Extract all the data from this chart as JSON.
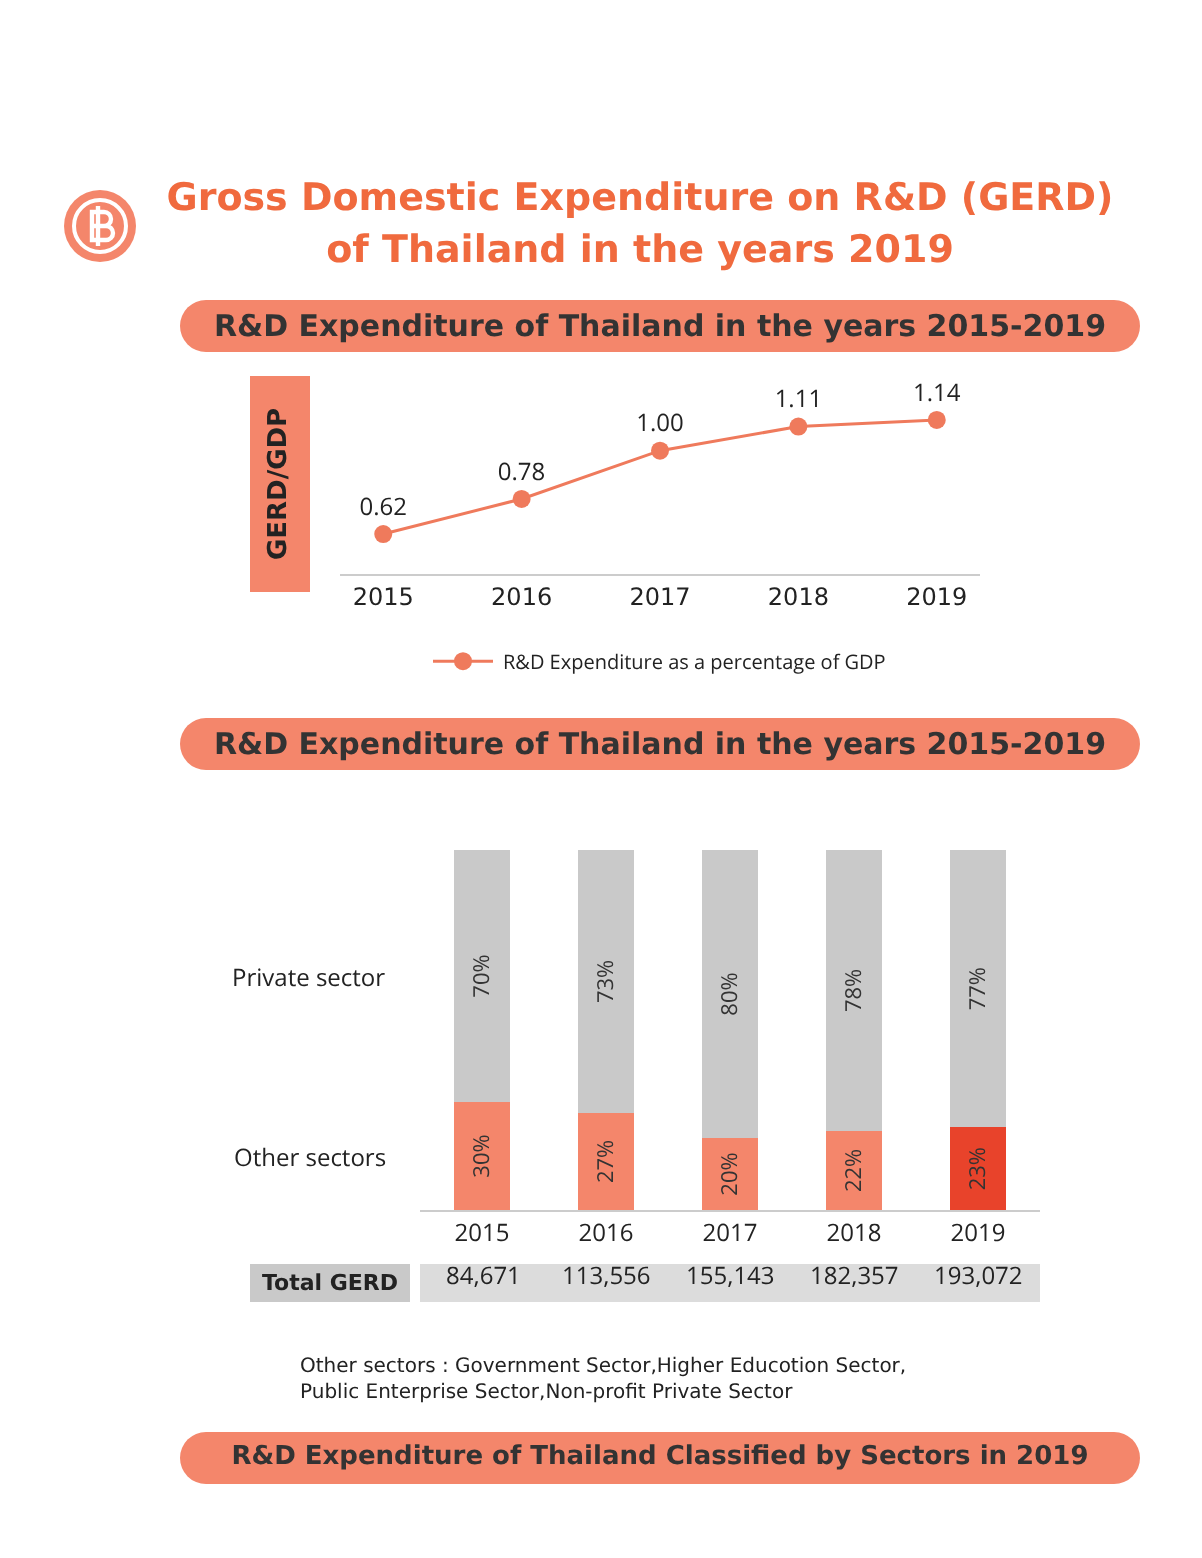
{
  "chart_data": [
    {
      "type": "line",
      "title": "Gross Domestic Expenditure on R&D (GERD) of Thailand in the years 2019",
      "subtitle": "R&D Expenditure of Thailand in the years 2015-2019",
      "ylabel": "GERD/GDP",
      "categories": [
        "2015",
        "2016",
        "2017",
        "2018",
        "2019"
      ],
      "series": [
        {
          "name": "R&D Expenditure as a percentage of GDP",
          "color": "#ef7a5c",
          "values": [
            0.62,
            0.78,
            1.0,
            1.11,
            1.14
          ],
          "value_labels": [
            "0.62",
            "0.78",
            "1.00",
            "1.11",
            "1.14"
          ]
        }
      ],
      "marker": "circle",
      "line_style": "solid",
      "grid": false,
      "legend": "bottom",
      "tick_labels": "x"
    },
    {
      "type": "bar",
      "stacked": true,
      "title": "R&D Expenditure of Thailand in the years 2015-2019",
      "categories": [
        "2015",
        "2016",
        "2017",
        "2018",
        "2019"
      ],
      "series": [
        {
          "name": "Other sectors",
          "colors": [
            "#f4866b",
            "#f4866b",
            "#f4866b",
            "#f4866b",
            "#e8432b"
          ],
          "values": [
            30,
            27,
            20,
            22,
            23
          ],
          "value_labels": [
            "30%",
            "27%",
            "20%",
            "22%",
            "23%"
          ]
        },
        {
          "name": "Private sector",
          "color": "#c9c9c9",
          "values": [
            70,
            73,
            80,
            78,
            77
          ],
          "value_labels": [
            "70%",
            "73%",
            "80%",
            "78%",
            "77%"
          ]
        }
      ],
      "annotations": [
        "Total GERD",
        "Other sectors : Government Sector,Higher Educotion Sector,\nPublic Enterprise Sector,Non-profit Private Sector",
        "R&D Expenditure of Thailand Classified by Sectors in 2019",
        "84,671",
        "113,556",
        "155,143",
        "182,357",
        "193,072"
      ],
      "grid": false,
      "legend": false,
      "tick_labels": "x"
    }
  ]
}
